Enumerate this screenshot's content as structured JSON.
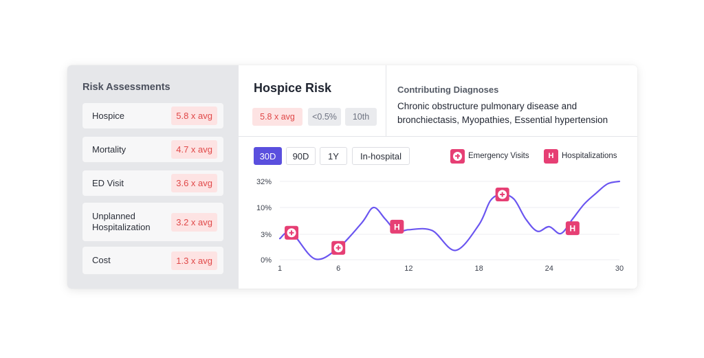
{
  "sidebar": {
    "title": "Risk Assessments",
    "items": [
      {
        "label": "Hospice",
        "value": "5.8 x avg"
      },
      {
        "label": "Mortality",
        "value": "4.7 x avg"
      },
      {
        "label": "ED Visit",
        "value": "3.6 x avg"
      },
      {
        "label": "Unplanned Hospitalization",
        "value": "3.2 x avg"
      },
      {
        "label": "Cost",
        "value": "1.3 x avg"
      }
    ]
  },
  "header": {
    "title": "Hospice Risk",
    "badges": [
      "5.8 x avg",
      "<0.5%",
      "10th"
    ]
  },
  "diagnoses": {
    "title": "Contributing Diagnoses",
    "text": "Chronic obstructure pulmonary disease and bronchiectasis, Myopathies, Essential hypertension"
  },
  "range_tabs": [
    "30D",
    "90D",
    "1Y",
    "In-hospital"
  ],
  "active_tab": "30D",
  "legend": {
    "emergency": "Emergency Visits",
    "hospital": "Hospitalizations",
    "hospital_icon": "H"
  },
  "colors": {
    "accent": "#5a4fde",
    "marker": "#e63f74",
    "risk_badge_bg": "#fde3e3",
    "risk_badge_text": "#e04848"
  },
  "chart_data": {
    "type": "line",
    "x_ticks": [
      1,
      6,
      12,
      18,
      24,
      30
    ],
    "y_ticks": [
      "0%",
      "3%",
      "10%",
      "32%"
    ],
    "y_scale": "categorical-log",
    "xlim": [
      1,
      30
    ],
    "grid": true,
    "series": [
      {
        "x": [
          1,
          2,
          4,
          6,
          8,
          9,
          10,
          11,
          12,
          14,
          16,
          18,
          19,
          20,
          21,
          22,
          23,
          24,
          25,
          26,
          27,
          28,
          29,
          30
        ],
        "y": [
          2.5,
          3.4,
          0.1,
          1.4,
          6.0,
          10.0,
          7.0,
          3.7,
          4.2,
          4.0,
          1.1,
          5.5,
          16.0,
          21.0,
          17.0,
          7.0,
          3.8,
          5.0,
          3.2,
          7.0,
          13.0,
          22.0,
          30.0,
          32.0
        ]
      }
    ],
    "markers": [
      {
        "type": "emergency",
        "x": 2,
        "y": 3.4
      },
      {
        "type": "emergency",
        "x": 6,
        "y": 1.4
      },
      {
        "type": "hospitalization",
        "x": 11,
        "y": 5.0,
        "label": "H"
      },
      {
        "type": "emergency",
        "x": 20,
        "y": 21.0
      },
      {
        "type": "hospitalization",
        "x": 26,
        "y": 4.6,
        "label": "H"
      }
    ]
  }
}
